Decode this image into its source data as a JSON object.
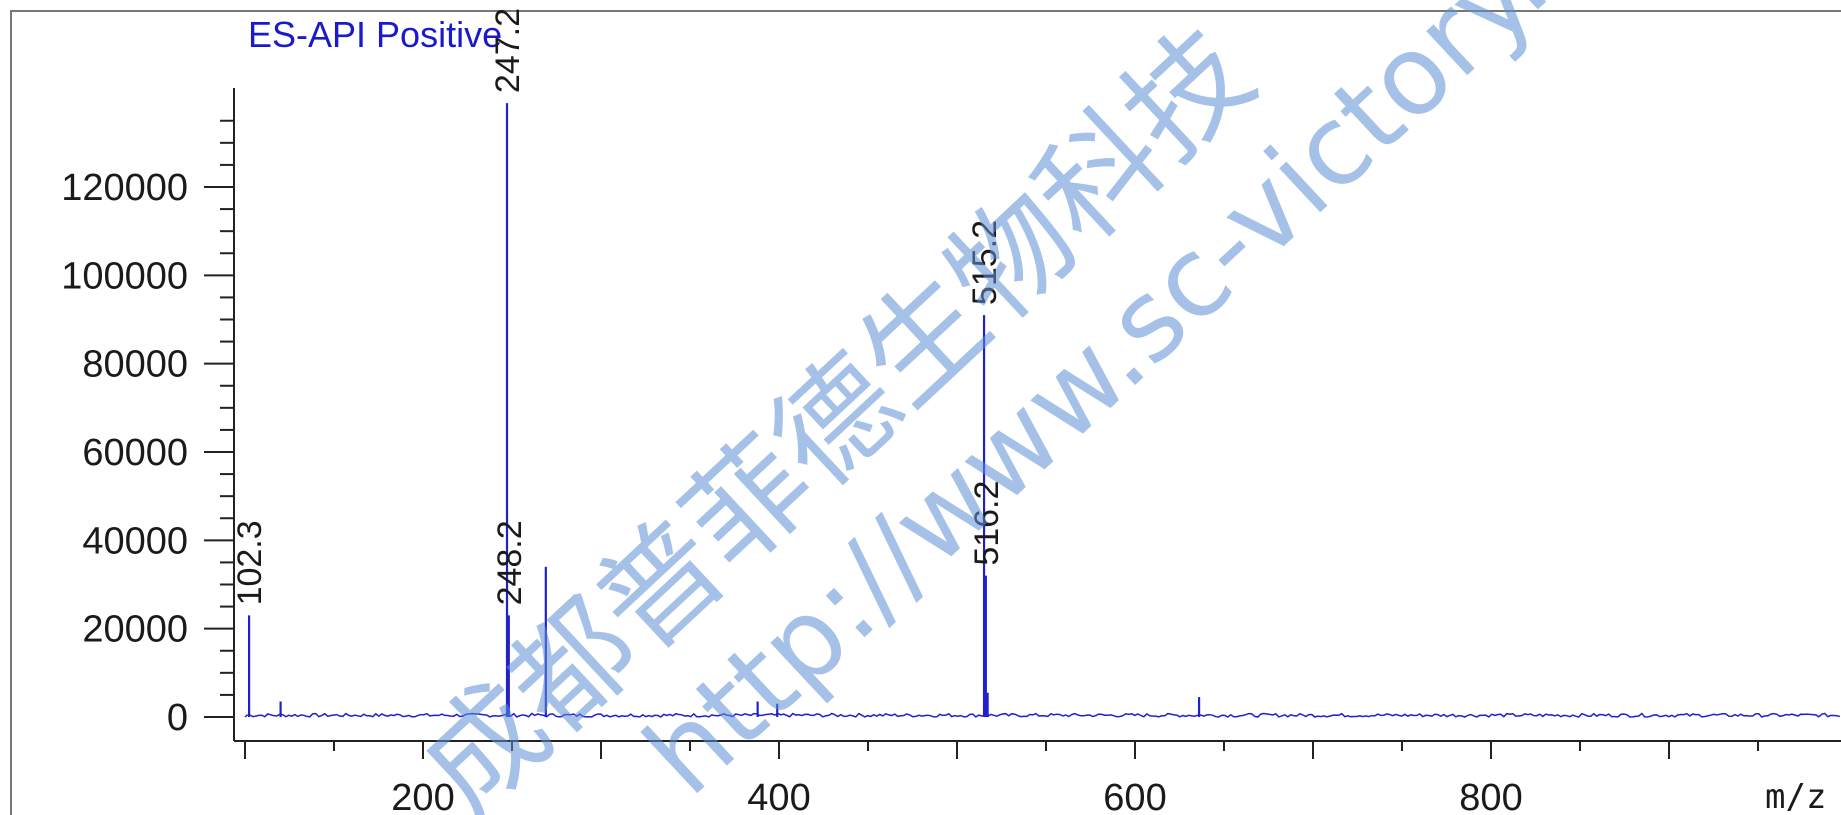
{
  "chart_data": {
    "type": "line",
    "title": "ES-API Positive",
    "xlabel": "m/z",
    "ylabel": "",
    "xlim": [
      100,
      1000
    ],
    "ylim": [
      -5000,
      140000
    ],
    "x_ticks": [
      200,
      400,
      600,
      800
    ],
    "y_ticks": [
      0,
      20000,
      40000,
      60000,
      80000,
      100000,
      120000
    ],
    "grid": false,
    "series": [
      {
        "color": "#2020cc",
        "peaks": [
          {
            "x": 102.3,
            "y": 23000,
            "label": "102.3"
          },
          {
            "x": 120.0,
            "y": 3500
          },
          {
            "x": 247.2,
            "y": 139000,
            "label": "247.2"
          },
          {
            "x": 248.2,
            "y": 23000,
            "label": "248.2"
          },
          {
            "x": 269.0,
            "y": 34000
          },
          {
            "x": 388.0,
            "y": 3500
          },
          {
            "x": 399.0,
            "y": 3000
          },
          {
            "x": 515.2,
            "y": 91000,
            "label": "515.2"
          },
          {
            "x": 516.2,
            "y": 32000,
            "label": "516.2"
          },
          {
            "x": 517.2,
            "y": 5500
          },
          {
            "x": 636.0,
            "y": 4500
          }
        ]
      }
    ]
  },
  "watermark": {
    "company": "成都普菲德生物科技",
    "url": "http://www.sc-victory.c"
  }
}
